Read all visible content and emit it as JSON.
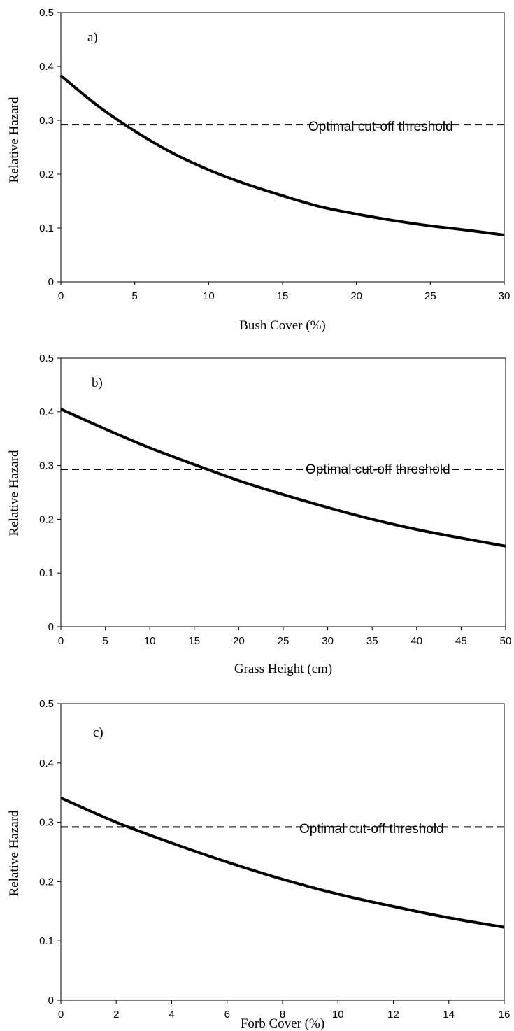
{
  "chart_data": [
    {
      "type": "line",
      "panel_label": "a)",
      "xlabel": "Bush Cover (%)",
      "ylabel": "Relative Hazard",
      "xlim": [
        0,
        30
      ],
      "ylim": [
        0,
        0.5
      ],
      "x_ticks": [
        "0",
        "5",
        "10",
        "15",
        "20",
        "25",
        "30"
      ],
      "y_ticks": [
        "0",
        "0.1",
        "0.2",
        "0.3",
        "0.4",
        "0.5"
      ],
      "annotation": "Optimal cut-off threshold",
      "threshold": 0.292,
      "grid": false,
      "series": [
        {
          "style": "solid",
          "x": [
            0,
            2.5,
            5,
            7.5,
            10,
            12.5,
            15,
            17.5,
            20,
            22.5,
            25,
            27.5,
            30
          ],
          "y": [
            0.383,
            0.327,
            0.28,
            0.24,
            0.208,
            0.182,
            0.16,
            0.14,
            0.126,
            0.114,
            0.104,
            0.096,
            0.087
          ]
        }
      ]
    },
    {
      "type": "line",
      "panel_label": "b)",
      "xlabel": "Grass Height (cm)",
      "ylabel": "Relative Hazard",
      "xlim": [
        0,
        50
      ],
      "ylim": [
        0,
        0.5
      ],
      "x_ticks": [
        "0",
        "5",
        "10",
        "15",
        "20",
        "25",
        "30",
        "35",
        "40",
        "45",
        "50"
      ],
      "y_ticks": [
        "0",
        "0.1",
        "0.2",
        "0.3",
        "0.4",
        "0.5"
      ],
      "annotation": "Optimal cut-off threshold",
      "threshold": 0.293,
      "grid": false,
      "series": [
        {
          "style": "solid",
          "x": [
            0,
            5,
            10,
            15,
            20,
            25,
            30,
            35,
            40,
            45,
            50
          ],
          "y": [
            0.405,
            0.368,
            0.333,
            0.302,
            0.272,
            0.246,
            0.222,
            0.2,
            0.181,
            0.165,
            0.15
          ]
        }
      ]
    },
    {
      "type": "line",
      "panel_label": "c)",
      "xlabel": "Forb Cover (%)",
      "ylabel": "Relative Hazard",
      "xlim": [
        0,
        16
      ],
      "ylim": [
        0,
        0.5
      ],
      "x_ticks": [
        "0",
        "2",
        "4",
        "6",
        "8",
        "10",
        "12",
        "14",
        "16"
      ],
      "y_ticks": [
        "0",
        "0.1",
        "0.2",
        "0.3",
        "0.4",
        "0.5"
      ],
      "annotation": "Optimal cut-off threshold",
      "threshold": 0.292,
      "grid": false,
      "series": [
        {
          "style": "solid",
          "x": [
            0,
            2,
            4,
            6,
            8,
            10,
            12,
            14,
            16
          ],
          "y": [
            0.341,
            0.3,
            0.265,
            0.233,
            0.204,
            0.179,
            0.158,
            0.139,
            0.123
          ]
        }
      ]
    }
  ]
}
